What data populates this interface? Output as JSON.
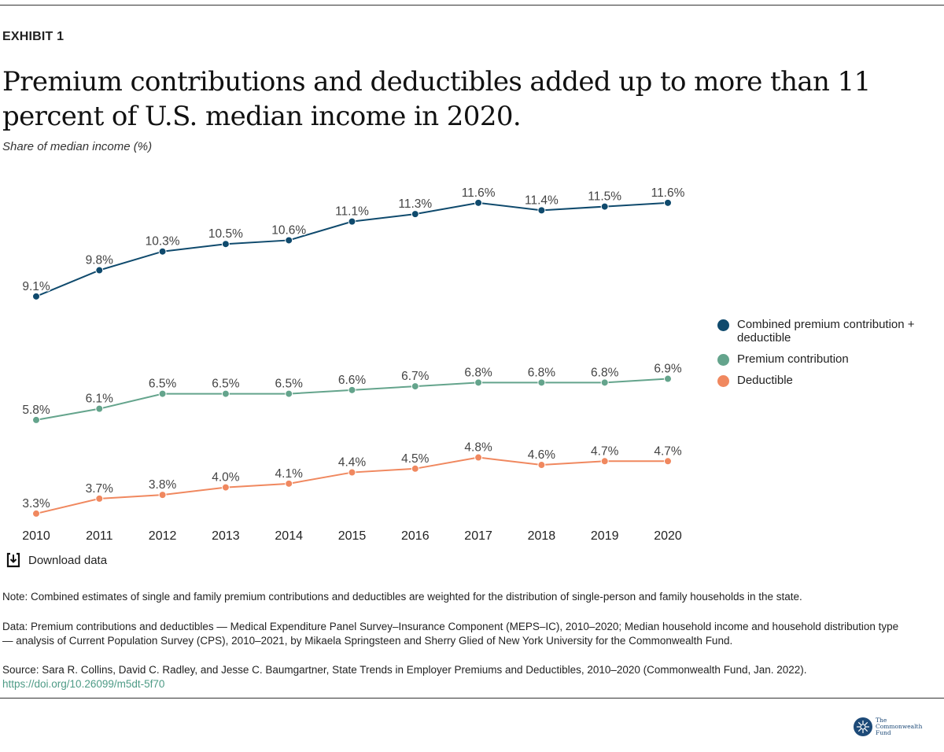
{
  "exhibit": "EXHIBIT 1",
  "title": "Premium contributions and deductibles added up to more than 11 percent of U.S. median income in 2020.",
  "subtitle": "Share of median income (%)",
  "chart_data": {
    "type": "line",
    "x": [
      "2010",
      "2011",
      "2012",
      "2013",
      "2014",
      "2015",
      "2016",
      "2017",
      "2018",
      "2019",
      "2020"
    ],
    "series": [
      {
        "name": "Combined premium contribution + deductible",
        "color": "#0f4a6d",
        "values": [
          9.1,
          9.8,
          10.3,
          10.5,
          10.6,
          11.1,
          11.3,
          11.6,
          11.4,
          11.5,
          11.6
        ]
      },
      {
        "name": "Premium contribution",
        "color": "#64a48c",
        "values": [
          5.8,
          6.1,
          6.5,
          6.5,
          6.5,
          6.6,
          6.7,
          6.8,
          6.8,
          6.8,
          6.9
        ]
      },
      {
        "name": "Deductible",
        "color": "#f0885f",
        "values": [
          3.3,
          3.7,
          3.8,
          4.0,
          4.1,
          4.4,
          4.5,
          4.8,
          4.6,
          4.7,
          4.7
        ]
      }
    ],
    "value_suffix": "%",
    "grid": false,
    "legend": "right"
  },
  "download_label": "Download data",
  "note": "Note: Combined estimates of single and family premium contributions and deductibles are weighted for the distribution of single-person and family households in the state.",
  "data_note": "Data: Premium contributions and deductibles — Medical Expenditure Panel Survey–Insurance Component (MEPS–IC), 2010–2020; Median household income and household distribution type — analysis of Current Population Survey (CPS), 2010–2021, by Mikaela Springsteen and Sherry Glied of New York University for the Commonwealth Fund.",
  "source": "Source: Sara R. Collins, David C. Radley, and Jesse C. Baumgartner, State Trends in Employer Premiums and Deductibles, 2010–2020 (Commonwealth Fund, Jan. 2022).",
  "doi": "https://doi.org/10.26099/m5dt-5f70",
  "logo_text": "The Commonwealth Fund"
}
